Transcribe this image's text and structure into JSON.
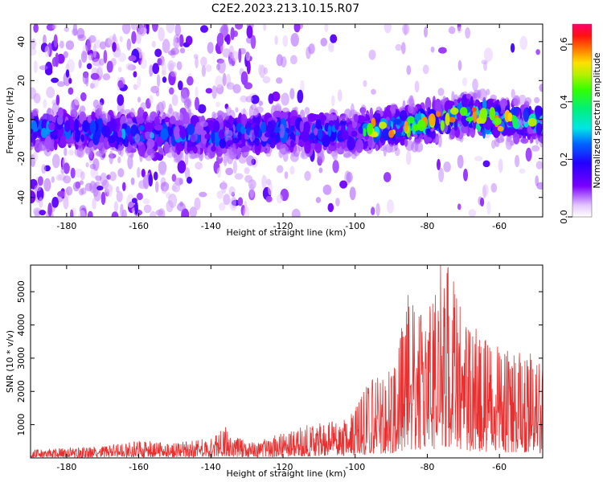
{
  "figure_title": "C2E2.2023.213.10.15.R07",
  "chart_data": [
    {
      "type": "heatmap",
      "xlabel": "Height of straight line (km)",
      "ylabel": "Frequency (Hz)",
      "xlim": [
        -190,
        -48
      ],
      "ylim": [
        -50,
        49
      ],
      "xticks": [
        -180,
        -160,
        -140,
        -120,
        -100,
        -80,
        -60
      ],
      "yticks": [
        -40,
        -20,
        0,
        20,
        40
      ],
      "colorbar": {
        "label": "Normalized spectral amplitude",
        "range": [
          0.0,
          0.67
        ],
        "ticks": [
          0.0,
          0.2,
          0.4,
          0.6
        ],
        "colormap": "gist_ncar-like (purple → blue → cyan → green → yellow → red → magenta)"
      },
      "ridge_center_hz": [
        {
          "x": -190,
          "y": -5
        },
        {
          "x": -160,
          "y": -7
        },
        {
          "x": -140,
          "y": -8
        },
        {
          "x": -120,
          "y": -6
        },
        {
          "x": -100,
          "y": -7
        },
        {
          "x": -90,
          "y": -4
        },
        {
          "x": -80,
          "y": -2
        },
        {
          "x": -70,
          "y": 3
        },
        {
          "x": -60,
          "y": 0
        },
        {
          "x": -48,
          "y": -2
        }
      ],
      "peak_amplitude_height_km": -67,
      "peak_amplitude": 0.6
    },
    {
      "type": "line",
      "xlabel": "Height of straight line (km)",
      "ylabel": "SNR (10 * v/v)",
      "xlim": [
        -190,
        -48
      ],
      "ylim": [
        0,
        5800
      ],
      "xticks": [
        -180,
        -160,
        -140,
        -120,
        -100,
        -80,
        -60
      ],
      "yticks": [
        1000,
        2000,
        3000,
        4000,
        5000
      ],
      "color": "#e83030",
      "series": [
        {
          "envelope": [
            {
              "x": -190,
              "y": 250
            },
            {
              "x": -170,
              "y": 350
            },
            {
              "x": -160,
              "y": 550
            },
            {
              "x": -150,
              "y": 450
            },
            {
              "x": -140,
              "y": 600
            },
            {
              "x": -136,
              "y": 950
            },
            {
              "x": -130,
              "y": 450
            },
            {
              "x": -120,
              "y": 750
            },
            {
              "x": -110,
              "y": 1100
            },
            {
              "x": -102,
              "y": 1200
            },
            {
              "x": -96,
              "y": 2300
            },
            {
              "x": -90,
              "y": 2700
            },
            {
              "x": -85,
              "y": 5100
            },
            {
              "x": -80,
              "y": 4200
            },
            {
              "x": -77,
              "y": 5800
            },
            {
              "x": -74,
              "y": 5800
            },
            {
              "x": -70,
              "y": 4300
            },
            {
              "x": -64,
              "y": 3600
            },
            {
              "x": -58,
              "y": 3300
            },
            {
              "x": -53,
              "y": 3300
            },
            {
              "x": -48,
              "y": 2900
            }
          ]
        }
      ]
    }
  ]
}
